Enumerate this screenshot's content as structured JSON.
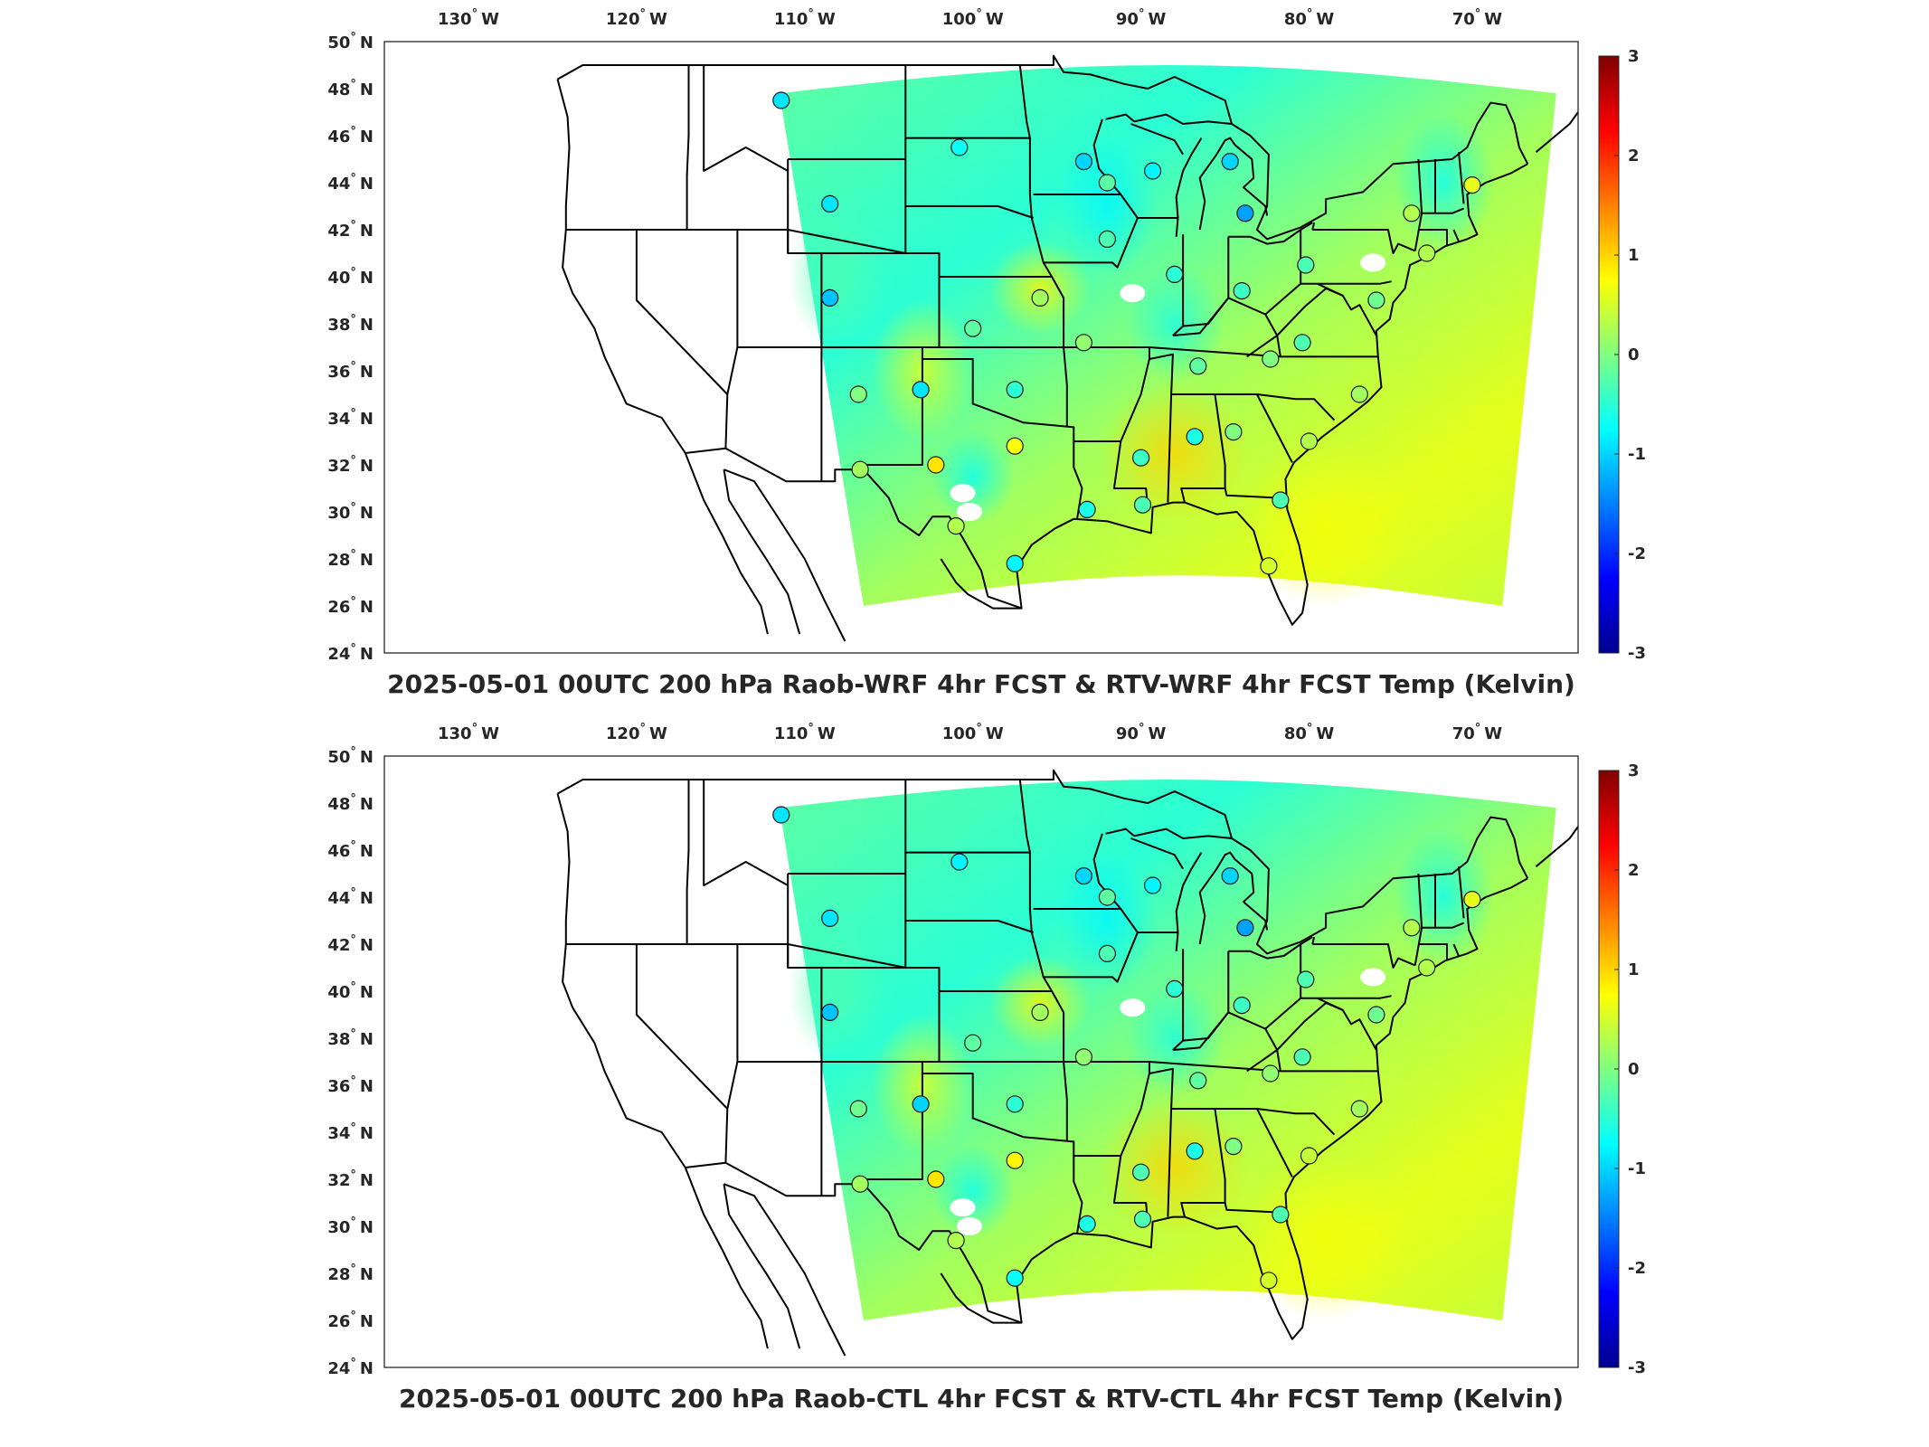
{
  "colors": {
    "colormap": [
      "#00008f",
      "#0000ff",
      "#0080ff",
      "#00ffff",
      "#80ff80",
      "#ffff00",
      "#ff8000",
      "#ff0000",
      "#800000"
    ],
    "frame": "#262626",
    "state_lines": "#000000"
  },
  "longitude_labels": [
    "130",
    "120",
    "110",
    "100",
    "90",
    "80",
    "70"
  ],
  "latitude_labels": [
    "50",
    "48",
    "46",
    "44",
    "42",
    "40",
    "38",
    "36",
    "34",
    "32",
    "30",
    "28",
    "26",
    "24"
  ],
  "lon_suffix": "W",
  "lat_suffix": "N",
  "degree": "°",
  "colorbar_ticks": [
    "3",
    "2",
    "1",
    "0",
    "-1",
    "-2",
    "-3"
  ],
  "panels": [
    {
      "title": "2025-05-01 00UTC 200 hPa Raob-WRF 4hr FCST & RTV-WRF 4hr FCST Temp (Kelvin)",
      "raob_values": [
        -0.9,
        -0.7,
        -1.0,
        -0.9,
        -1.1,
        -0.8,
        -1.0,
        -0.3,
        -1.3,
        -0.5,
        -0.4,
        0.2,
        -0.2,
        0.1,
        0.0,
        -0.9,
        -0.5,
        -0.2,
        0.0,
        -0.3,
        -0.3,
        -0.1,
        0.3,
        0.6,
        0.2,
        0.3,
        -0.6,
        0.0,
        -0.4,
        0.7,
        0.9,
        0.2,
        0.3,
        -0.8,
        -0.6,
        -0.3,
        -0.3,
        0.5,
        0.3,
        -0.2
      ]
    },
    {
      "title": "2025-05-01 00UTC 200 hPa Raob-CTL 4hr FCST & RTV-CTL 4hr FCST Temp (Kelvin)",
      "raob_values": [
        -0.9,
        -0.8,
        -1.0,
        -0.9,
        -1.1,
        -0.8,
        -1.0,
        -0.3,
        -1.3,
        -0.5,
        -0.4,
        0.2,
        -0.2,
        0.1,
        -0.1,
        -1.0,
        -0.5,
        -0.2,
        0.1,
        -0.3,
        -0.3,
        -0.1,
        0.3,
        0.6,
        0.2,
        0.4,
        -0.6,
        0.0,
        -0.3,
        0.8,
        0.9,
        0.2,
        0.3,
        -0.7,
        -0.6,
        -0.3,
        -0.3,
        0.5,
        0.3,
        -0.2
      ]
    }
  ]
}
